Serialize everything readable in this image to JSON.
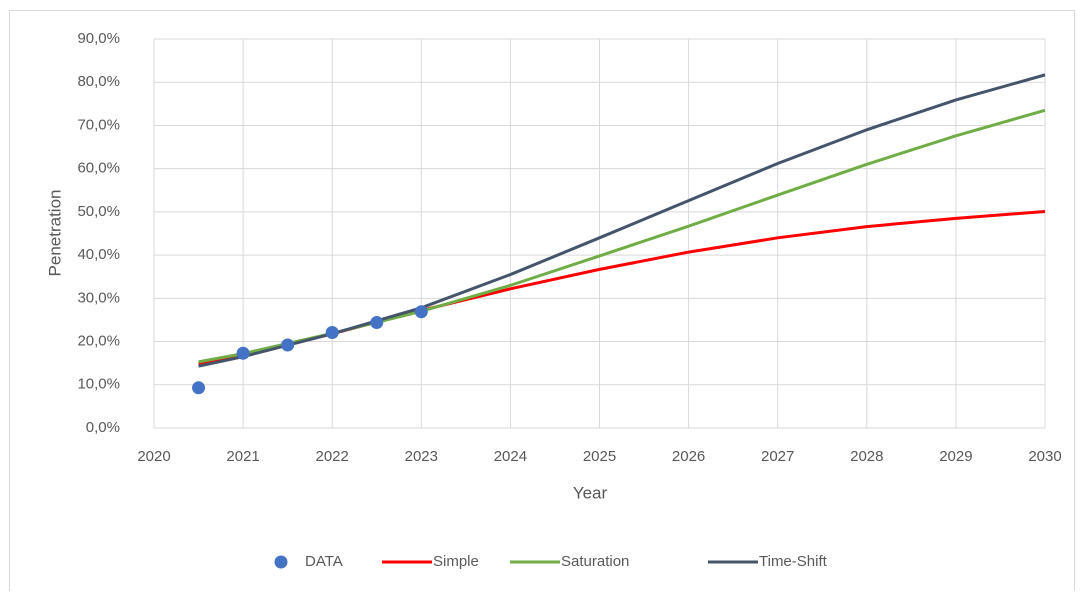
{
  "chart_data": {
    "type": "line",
    "x_label": "Year",
    "y_label": "Penetration",
    "xlim": [
      2020,
      2030
    ],
    "xticks": [
      2020,
      2021,
      2022,
      2023,
      2024,
      2025,
      2026,
      2027,
      2028,
      2029,
      2030
    ],
    "ylim": [
      0,
      90
    ],
    "yticks": [
      {
        "value": 0,
        "label": "0,0%"
      },
      {
        "value": 10,
        "label": "10,0%"
      },
      {
        "value": 20,
        "label": "20,0%"
      },
      {
        "value": 30,
        "label": "30,0%"
      },
      {
        "value": 40,
        "label": "40,0%"
      },
      {
        "value": 50,
        "label": "50,0%"
      },
      {
        "value": 60,
        "label": "60,0%"
      },
      {
        "value": 70,
        "label": "70,0%"
      },
      {
        "value": 80,
        "label": "80,0%"
      },
      {
        "value": 90,
        "label": "90,0%"
      }
    ],
    "grid": true,
    "legend": "bottom",
    "series": [
      {
        "name": "DATA",
        "type": "scatter",
        "color": "#4472c4",
        "x": [
          2020.5,
          2021,
          2021.5,
          2022,
          2022.5,
          2023
        ],
        "values": [
          9.3,
          17.3,
          19.2,
          22.1,
          24.4,
          26.9
        ]
      },
      {
        "name": "Simple",
        "type": "line",
        "color": "#ff0000",
        "x": [
          2020.5,
          2021,
          2022,
          2023,
          2024,
          2025,
          2026,
          2027,
          2028,
          2029,
          2030
        ],
        "values": [
          14.8,
          16.8,
          21.8,
          27.2,
          32.2,
          36.7,
          40.7,
          44.0,
          46.6,
          48.5,
          50.1
        ]
      },
      {
        "name": "Saturation",
        "type": "line",
        "color": "#70ad47",
        "x": [
          2020.5,
          2021,
          2022,
          2023,
          2024,
          2025,
          2026,
          2027,
          2028,
          2029,
          2030
        ],
        "values": [
          15.3,
          17.2,
          21.9,
          27.0,
          33.0,
          39.8,
          46.7,
          53.9,
          61.0,
          67.6,
          73.5
        ]
      },
      {
        "name": "Time-Shift",
        "type": "line",
        "color": "#44546a",
        "x": [
          2020.5,
          2021,
          2022,
          2023,
          2024,
          2025,
          2026,
          2027,
          2028,
          2029,
          2030
        ],
        "values": [
          14.3,
          16.5,
          21.8,
          27.8,
          35.5,
          44.0,
          52.6,
          61.2,
          69.0,
          75.9,
          81.7
        ]
      }
    ]
  }
}
